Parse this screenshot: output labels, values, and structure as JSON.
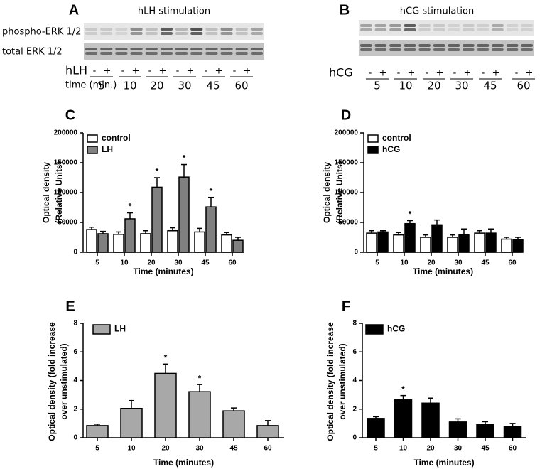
{
  "blots": [
    {
      "panel": "A",
      "title": "hLH stimulation",
      "rows": [
        "phospho-ERK 1/2",
        "total ERK 1/2"
      ],
      "treatment": "hLH",
      "time_label": "time (min.)",
      "signs": [
        "-",
        "+"
      ],
      "times": [
        "5",
        "10",
        "20",
        "30",
        "45",
        "60"
      ]
    },
    {
      "panel": "B",
      "title": "hCG stimulation",
      "treatment": "hCG",
      "signs": [
        "-",
        "+"
      ],
      "times": [
        "5",
        "10",
        "20",
        "30",
        "45",
        "60"
      ]
    }
  ],
  "chart_data": [
    {
      "type": "bar",
      "panel": "C",
      "ylabel": [
        "Optical density",
        "(Relative Units)"
      ],
      "xlabel": "Time (minutes)",
      "categories": [
        "5",
        "10",
        "20",
        "30",
        "45",
        "60"
      ],
      "series": [
        {
          "name": "control",
          "color": "#ffffff",
          "values": [
            38000,
            30000,
            31000,
            36000,
            34000,
            29000
          ],
          "errors": [
            4000,
            4000,
            5000,
            5000,
            6000,
            4000
          ]
        },
        {
          "name": "LH",
          "color": "#808080",
          "values": [
            31000,
            56000,
            109000,
            126000,
            76000,
            20000
          ],
          "errors": [
            4000,
            10000,
            16000,
            21000,
            16000,
            5000
          ]
        }
      ],
      "annotations": [
        {
          "text": "*",
          "series": "LH",
          "category": "10"
        },
        {
          "text": "*",
          "series": "LH",
          "category": "20"
        },
        {
          "text": "*",
          "series": "LH",
          "category": "30"
        },
        {
          "text": "*",
          "series": "LH",
          "category": "45"
        }
      ],
      "ylim": [
        0,
        200000
      ],
      "yticks": [
        0,
        50000,
        100000,
        150000,
        200000
      ],
      "legend": "top-left"
    },
    {
      "type": "bar",
      "panel": "D",
      "ylabel": [
        "Optical density",
        "(Relative Units)"
      ],
      "xlabel": "Time (minutes)",
      "categories": [
        "5",
        "10",
        "20",
        "30",
        "45",
        "60"
      ],
      "series": [
        {
          "name": "control",
          "color": "#ffffff",
          "values": [
            32000,
            29000,
            25000,
            25000,
            32000,
            22000
          ],
          "errors": [
            4000,
            4000,
            4000,
            4000,
            4000,
            3000
          ]
        },
        {
          "name": "hCG",
          "color": "#000000",
          "values": [
            34000,
            48000,
            46000,
            29000,
            32000,
            21000
          ],
          "errors": [
            2000,
            5000,
            8000,
            10000,
            7000,
            4000
          ]
        }
      ],
      "annotations": [
        {
          "text": "*",
          "series": "hCG",
          "category": "10"
        }
      ],
      "ylim": [
        0,
        200000
      ],
      "yticks": [
        0,
        50000,
        100000,
        150000,
        200000
      ],
      "legend": "top-left"
    },
    {
      "type": "bar",
      "panel": "E",
      "ylabel": [
        "Optical density (fold increase",
        "over unstimulated)"
      ],
      "xlabel": "Time (minutes)",
      "categories": [
        "5",
        "10",
        "20",
        "30",
        "45",
        "60"
      ],
      "series": [
        {
          "name": "LH",
          "color": "#a8a8a8",
          "values": [
            0.85,
            2.05,
            4.5,
            3.22,
            1.88,
            0.85
          ],
          "errors": [
            0.1,
            0.55,
            0.65,
            0.5,
            0.2,
            0.35
          ]
        }
      ],
      "annotations": [
        {
          "text": "*",
          "series": "LH",
          "category": "20"
        },
        {
          "text": "*",
          "series": "LH",
          "category": "30"
        }
      ],
      "ylim": [
        0,
        8
      ],
      "yticks": [
        0,
        2,
        4,
        6,
        8
      ],
      "legend": "top-left"
    },
    {
      "type": "bar",
      "panel": "F",
      "ylabel": [
        "Optical density (fold increase",
        "over unstimulated)"
      ],
      "xlabel": "Time (minutes)",
      "categories": [
        "5",
        "10",
        "20",
        "30",
        "45",
        "60"
      ],
      "series": [
        {
          "name": "hCG",
          "color": "#000000",
          "values": [
            1.35,
            2.65,
            2.42,
            1.1,
            0.92,
            0.8
          ],
          "errors": [
            0.12,
            0.3,
            0.35,
            0.22,
            0.2,
            0.2
          ]
        }
      ],
      "annotations": [
        {
          "text": "*",
          "series": "hCG",
          "category": "10"
        }
      ],
      "ylim": [
        0,
        8
      ],
      "yticks": [
        0,
        2,
        4,
        6,
        8
      ],
      "legend": "top-left"
    }
  ]
}
